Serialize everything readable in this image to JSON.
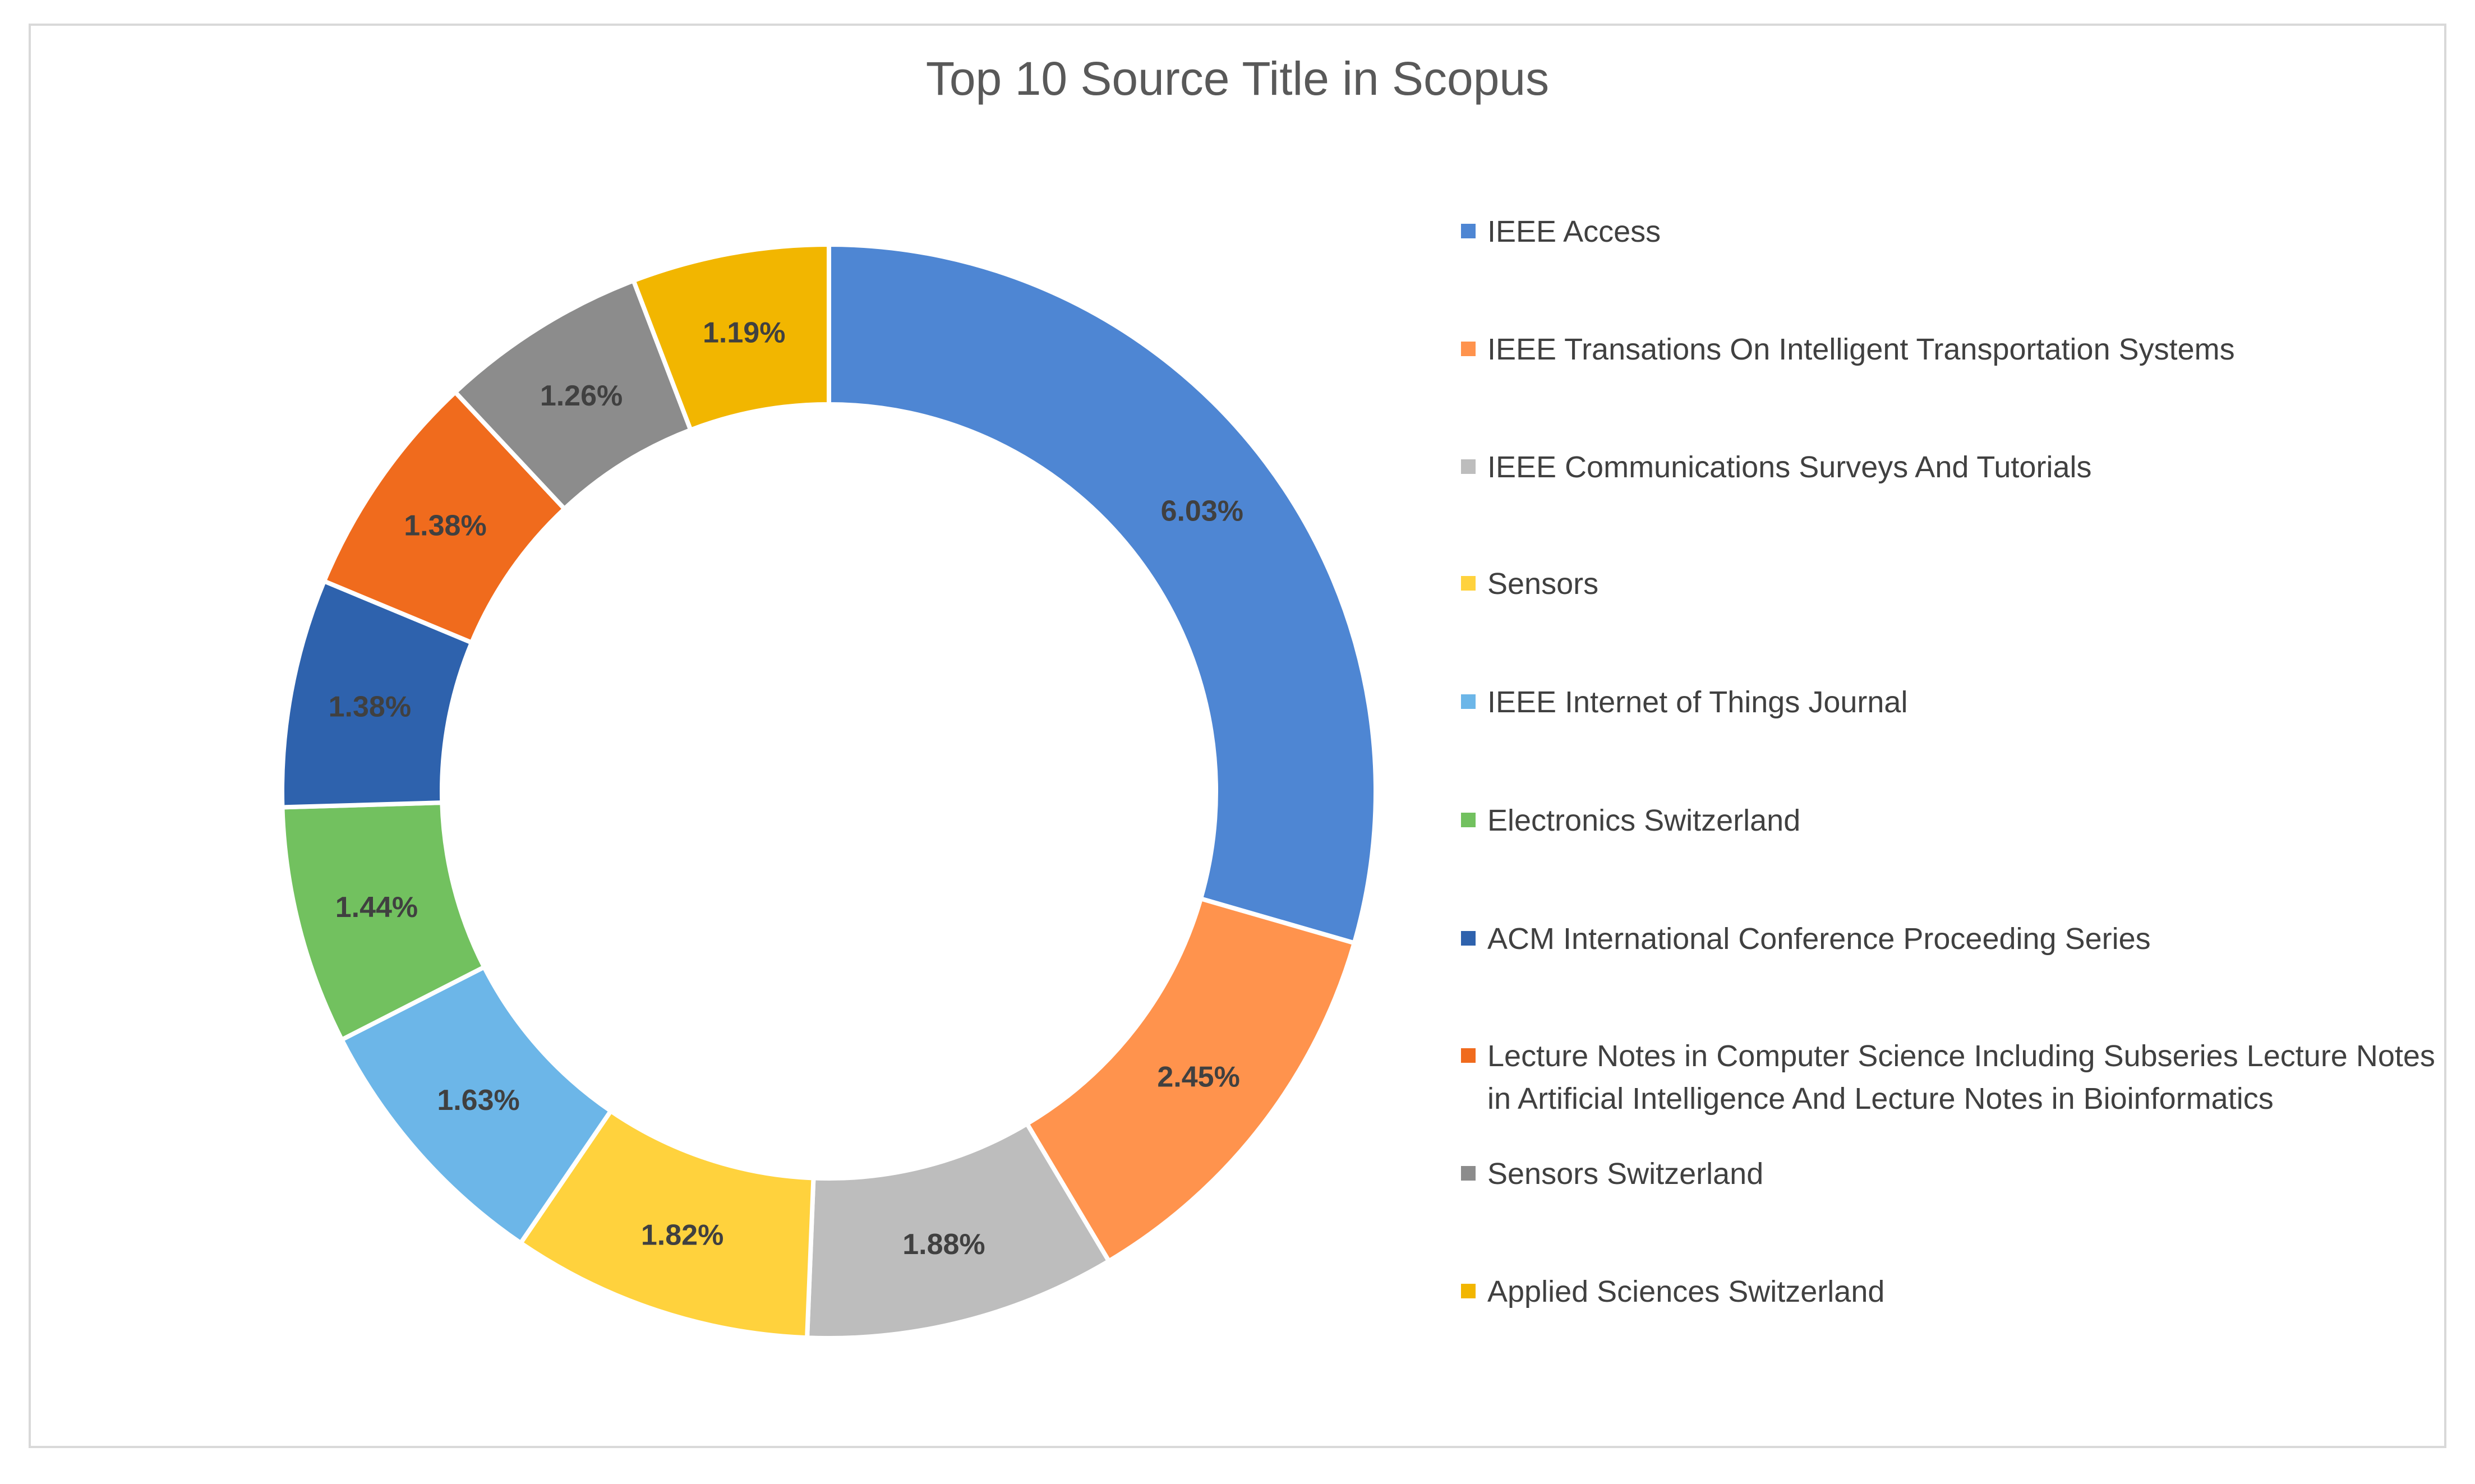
{
  "chart_data": {
    "type": "pie",
    "variant": "donut",
    "title": "Top 10 Source Title in Scopus",
    "legend_position": "right",
    "slices": [
      {
        "label": "IEEE Access",
        "value": 6.03,
        "display": "6.03%",
        "color": "#4e86d3"
      },
      {
        "label": "IEEE Transations On Intelligent Transportation Systems",
        "value": 2.45,
        "display": "2.45%",
        "color": "#ff934d"
      },
      {
        "label": "IEEE Communications Surveys And Tutorials",
        "value": 1.88,
        "display": "1.88%",
        "color": "#bdbdbd"
      },
      {
        "label": "Sensors",
        "value": 1.82,
        "display": "1.82%",
        "color": "#ffd23d"
      },
      {
        "label": "IEEE Internet of Things Journal",
        "value": 1.63,
        "display": "1.63%",
        "color": "#6cb6e8"
      },
      {
        "label": "Electronics Switzerland",
        "value": 1.44,
        "display": "1.44%",
        "color": "#72c15f"
      },
      {
        "label": "ACM International Conference Proceeding Series",
        "value": 1.38,
        "display": "1.38%",
        "color": "#2e62ad"
      },
      {
        "label": "Lecture Notes in Computer Science Including Subseries Lecture Notes in Artificial Intelligence And Lecture Notes in Bioinformatics",
        "value": 1.38,
        "display": "1.38%",
        "color": "#f06b1d"
      },
      {
        "label": "Sensors Switzerland",
        "value": 1.26,
        "display": "1.26%",
        "color": "#8c8c8c"
      },
      {
        "label": "Applied Sciences Switzerland",
        "value": 1.19,
        "display": "1.19%",
        "color": "#f2b600"
      }
    ]
  }
}
